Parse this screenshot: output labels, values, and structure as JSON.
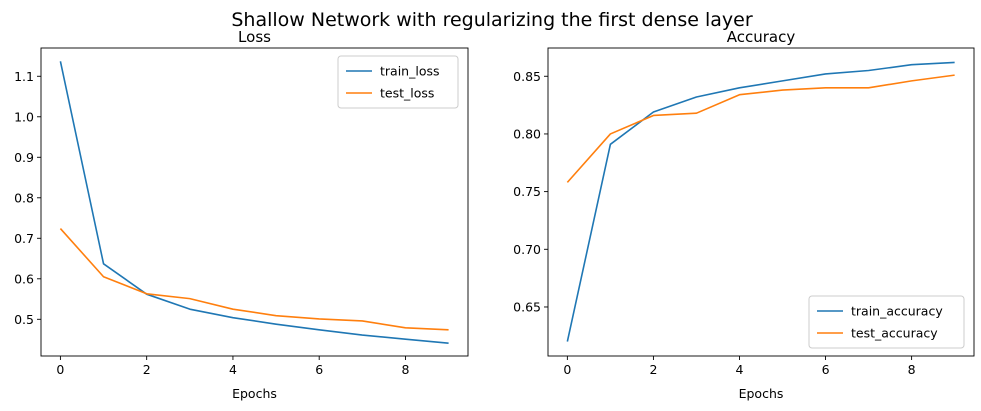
{
  "figure": {
    "suptitle": "Shallow Network with regularizing the first dense layer"
  },
  "chart_data": [
    {
      "type": "line",
      "title": "Loss",
      "xlabel": "Epochs",
      "ylabel": "",
      "x": [
        0,
        1,
        2,
        3,
        4,
        5,
        6,
        7,
        8,
        9
      ],
      "xlim": [
        -0.45,
        9.45
      ],
      "ylim": [
        0.4094,
        1.1698
      ],
      "xticks": [
        0,
        2,
        4,
        6,
        8
      ],
      "yticks": [
        0.5,
        0.6,
        0.7,
        0.8,
        0.9,
        1.0,
        1.1
      ],
      "ytick_labels": [
        "0.5",
        "0.6",
        "0.7",
        "0.8",
        "0.9",
        "1.0",
        "1.1"
      ],
      "grid": false,
      "legend_position": "top-right",
      "series": [
        {
          "name": "train_loss",
          "color": "#1f77b4",
          "values": [
            1.137,
            0.637,
            0.562,
            0.525,
            0.504,
            0.488,
            0.474,
            0.461,
            0.451,
            0.441
          ]
        },
        {
          "name": "test_loss",
          "color": "#ff7f0e",
          "values": [
            0.724,
            0.605,
            0.563,
            0.551,
            0.525,
            0.509,
            0.501,
            0.496,
            0.479,
            0.474
          ]
        }
      ]
    },
    {
      "type": "line",
      "title": "Accuracy",
      "xlabel": "Epochs",
      "ylabel": "",
      "x": [
        0,
        1,
        2,
        3,
        4,
        5,
        6,
        7,
        8,
        9
      ],
      "xlim": [
        -0.45,
        9.45
      ],
      "ylim": [
        0.6075,
        0.8745
      ],
      "xticks": [
        0,
        2,
        4,
        6,
        8
      ],
      "yticks": [
        0.65,
        0.7,
        0.75,
        0.8,
        0.85
      ],
      "ytick_labels": [
        "0.65",
        "0.70",
        "0.75",
        "0.80",
        "0.85"
      ],
      "grid": false,
      "legend_position": "bottom-right",
      "series": [
        {
          "name": "train_accuracy",
          "color": "#1f77b4",
          "values": [
            0.62,
            0.791,
            0.819,
            0.832,
            0.84,
            0.846,
            0.852,
            0.855,
            0.86,
            0.862
          ]
        },
        {
          "name": "test_accuracy",
          "color": "#ff7f0e",
          "values": [
            0.758,
            0.8,
            0.816,
            0.818,
            0.834,
            0.838,
            0.84,
            0.84,
            0.846,
            0.851
          ]
        }
      ]
    }
  ]
}
